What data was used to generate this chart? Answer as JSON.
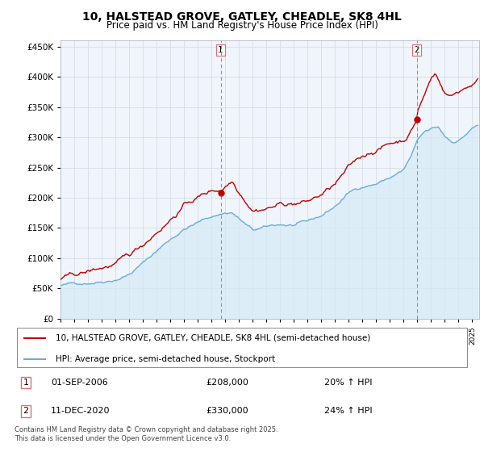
{
  "title": "10, HALSTEAD GROVE, GATLEY, CHEADLE, SK8 4HL",
  "subtitle": "Price paid vs. HM Land Registry's House Price Index (HPI)",
  "yticks": [
    0,
    50000,
    100000,
    150000,
    200000,
    250000,
    300000,
    350000,
    400000,
    450000
  ],
  "ylim": [
    0,
    460000
  ],
  "xlim_start": 1995.0,
  "xlim_end": 2025.5,
  "hpi_color": "#6aaed6",
  "price_color": "#c00000",
  "fill_color": "#d6eaf8",
  "dashed_vline_color": "#e07070",
  "transaction1_x": 2006.67,
  "transaction1_y": 208000,
  "transaction2_x": 2020.95,
  "transaction2_y": 330000,
  "legend_line1": "10, HALSTEAD GROVE, GATLEY, CHEADLE, SK8 4HL (semi-detached house)",
  "legend_line2": "HPI: Average price, semi-detached house, Stockport",
  "footer": "Contains HM Land Registry data © Crown copyright and database right 2025.\nThis data is licensed under the Open Government Licence v3.0.",
  "background_color": "#ffffff"
}
